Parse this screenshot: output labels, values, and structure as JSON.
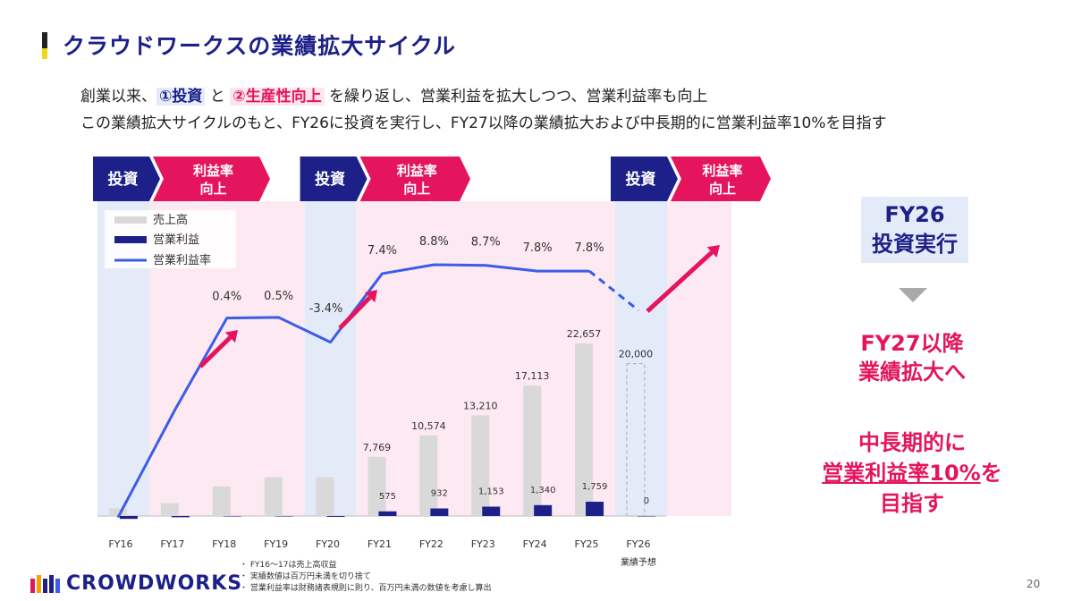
{
  "page": {
    "title": "クラウドワークスの業績拡大サイクル",
    "lead_line1": {
      "pre": "創業以来、",
      "hl1": "①投資",
      "mid": " と ",
      "hl2": "②生産性向上",
      "post": " を繰り返し、営業利益を拡大しつつ、営業利益率も向上"
    },
    "lead_line2": "この業績拡大サイクルのもと、FY26に投資を実行し、FY27以降の業績拡大および中長期的に営業利益率10%を目指す",
    "side": {
      "fy26_line1": "FY26",
      "fy26_line2": "投資実行",
      "fy27_line1": "FY27以降",
      "fy27_line2": "業績拡大へ",
      "mid_line1": "中長期的に",
      "mid_line2_ul": "営業利益率10%",
      "mid_line2_post": "を",
      "mid_line3": "目指す"
    },
    "logo_text": "CROWDWORKS",
    "notes": [
      "FY16～17は売上高収益",
      "実績数値は百万円未満を切り捨て",
      "営業利益率は財務諸表規則に則り、百万円未満の数値を考慮し算出"
    ],
    "page_number": "20"
  },
  "colors": {
    "navy": "#1d2088",
    "magenta": "#e4155d",
    "revenue_bar": "#d9d9d9",
    "line": "#3b5de7",
    "invest_band": "#e4ebf8",
    "profit_band": "#fde9f1"
  },
  "chart_data": {
    "type": "bar",
    "categories": [
      "FY16",
      "FY17",
      "FY18",
      "FY19",
      "FY20",
      "FY21",
      "FY22",
      "FY23",
      "FY24",
      "FY25",
      "FY26"
    ],
    "category_sublabels": [
      "",
      "",
      "",
      "",
      "",
      "",
      "",
      "",
      "",
      "",
      "業績予想"
    ],
    "legend": [
      "売上高",
      "営業利益",
      "営業利益率"
    ],
    "phases": [
      {
        "invest_label": "投資",
        "profit_label": "利益率\n向上",
        "invest_years": [
          "FY16"
        ],
        "profit_years": [
          "FY17",
          "FY18",
          "FY19"
        ]
      },
      {
        "invest_label": "投資",
        "profit_label": "利益率\n向上",
        "invest_years": [
          "FY20"
        ],
        "profit_years": [
          "FY21",
          "FY22",
          "FY23",
          "FY24",
          "FY25"
        ]
      },
      {
        "invest_label": "投資",
        "profit_label": "利益率\n向上",
        "invest_years": [
          "FY26"
        ],
        "profit_years": []
      }
    ],
    "series": [
      {
        "name": "売上高",
        "type": "bar",
        "values": [
          1000,
          1700,
          3900,
          5100,
          5100,
          7769,
          10574,
          13210,
          17113,
          22657,
          20000
        ],
        "labels": [
          "",
          "",
          "",
          "",
          "",
          "7,769",
          "10,574",
          "13,210",
          "17,113",
          "22,657",
          "20,000"
        ]
      },
      {
        "name": "営業利益",
        "type": "bar",
        "values": [
          -350,
          -150,
          0,
          0,
          -100,
          575,
          932,
          1153,
          1340,
          1759,
          0
        ],
        "labels": [
          "",
          "",
          "",
          "",
          "",
          "575",
          "932",
          "1,153",
          "1,340",
          "1,759",
          "0"
        ]
      },
      {
        "name": "営業利益率",
        "type": "line",
        "values": [
          -31,
          -14,
          0.4,
          0.5,
          -3.4,
          7.4,
          8.8,
          8.7,
          7.8,
          7.8,
          null
        ],
        "labels": [
          "",
          "",
          "0.4%",
          "0.5%",
          "-3.4%",
          "7.4%",
          "8.8%",
          "8.7%",
          "7.8%",
          "7.8%",
          ""
        ]
      }
    ],
    "forecast_index": 10
  }
}
